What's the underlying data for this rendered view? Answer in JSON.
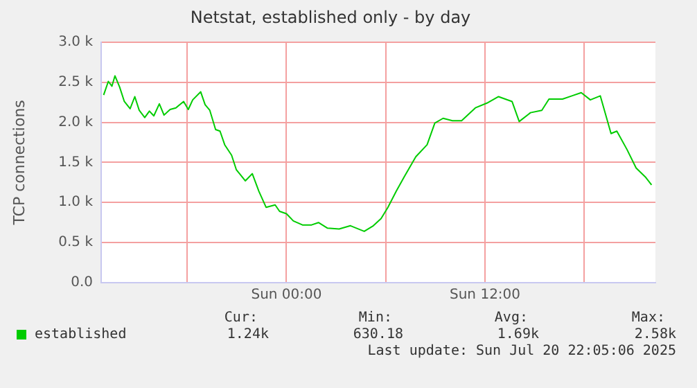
{
  "chart_data": {
    "type": "line",
    "title": "Netstat, established only - by day",
    "ylabel": "TCP connections",
    "xlim": [
      "2025-07-19T12:48",
      "2025-07-20T22:18"
    ],
    "xticks": [
      {
        "value": "2025-07-19T18:00",
        "label": null
      },
      {
        "value": "2025-07-20T00:00",
        "label": "Sun 00:00"
      },
      {
        "value": "2025-07-20T06:00",
        "label": null
      },
      {
        "value": "2025-07-20T12:00",
        "label": "Sun 12:00"
      },
      {
        "value": "2025-07-20T18:00",
        "label": null
      }
    ],
    "ylim": [
      0,
      3000
    ],
    "yticks": [
      {
        "value": 0,
        "label": "0.0"
      },
      {
        "value": 500,
        "label": "0.5 k"
      },
      {
        "value": 1000,
        "label": "1.0 k"
      },
      {
        "value": 1500,
        "label": "1.5 k"
      },
      {
        "value": 2000,
        "label": "2.0 k"
      },
      {
        "value": 2500,
        "label": "2.5 k"
      },
      {
        "value": 3000,
        "label": "3.0 k"
      }
    ],
    "grid": true,
    "legend": "bottom",
    "marker": "none",
    "line_style": "solid",
    "series": [
      {
        "name": "established",
        "color": "#00cc00",
        "x": [
          "2025-07-19T12:57",
          "2025-07-19T13:14",
          "2025-07-19T13:27",
          "2025-07-19T13:38",
          "2025-07-19T13:55",
          "2025-07-19T14:12",
          "2025-07-19T14:33",
          "2025-07-19T14:50",
          "2025-07-19T15:06",
          "2025-07-19T15:26",
          "2025-07-19T15:43",
          "2025-07-19T15:59",
          "2025-07-19T16:19",
          "2025-07-19T16:36",
          "2025-07-19T16:58",
          "2025-07-19T17:19",
          "2025-07-19T17:47",
          "2025-07-19T18:04",
          "2025-07-19T18:20",
          "2025-07-19T18:49",
          "2025-07-19T19:05",
          "2025-07-19T19:22",
          "2025-07-19T19:43",
          "2025-07-19T19:59",
          "2025-07-19T20:16",
          "2025-07-19T20:41",
          "2025-07-19T20:58",
          "2025-07-19T21:31",
          "2025-07-19T21:56",
          "2025-07-19T22:20",
          "2025-07-19T22:46",
          "2025-07-19T23:19",
          "2025-07-19T23:35",
          "2025-07-20T00:00",
          "2025-07-20T00:25",
          "2025-07-20T00:58",
          "2025-07-20T01:31",
          "2025-07-20T01:56",
          "2025-07-20T02:29",
          "2025-07-20T03:11",
          "2025-07-20T03:52",
          "2025-07-20T04:42",
          "2025-07-20T05:15",
          "2025-07-20T05:43",
          "2025-07-20T06:08",
          "2025-07-20T06:38",
          "2025-07-20T07:07",
          "2025-07-20T07:49",
          "2025-07-20T08:30",
          "2025-07-20T08:58",
          "2025-07-20T09:28",
          "2025-07-20T10:02",
          "2025-07-20T10:35",
          "2025-07-20T11:25",
          "2025-07-20T12:07",
          "2025-07-20T12:49",
          "2025-07-20T13:38",
          "2025-07-20T14:04",
          "2025-07-20T14:45",
          "2025-07-20T15:26",
          "2025-07-20T15:52",
          "2025-07-20T16:41",
          "2025-07-20T17:15",
          "2025-07-20T17:49",
          "2025-07-20T18:22",
          "2025-07-20T18:58",
          "2025-07-20T19:37",
          "2025-07-20T19:58",
          "2025-07-20T20:35",
          "2025-07-20T21:08",
          "2025-07-20T21:41",
          "2025-07-20T22:04"
        ],
        "values": [
          2340,
          2510,
          2450,
          2580,
          2440,
          2260,
          2170,
          2320,
          2150,
          2060,
          2140,
          2080,
          2230,
          2090,
          2160,
          2180,
          2260,
          2160,
          2280,
          2380,
          2220,
          2150,
          1910,
          1890,
          1720,
          1590,
          1410,
          1270,
          1360,
          1140,
          940,
          970,
          890,
          860,
          770,
          720,
          720,
          750,
          680,
          670,
          710,
          640,
          710,
          800,
          940,
          1140,
          1320,
          1570,
          1720,
          1990,
          2050,
          2020,
          2020,
          2180,
          2240,
          2320,
          2260,
          2010,
          2120,
          2150,
          2290,
          2290,
          2330,
          2370,
          2280,
          2330,
          1860,
          1890,
          1660,
          1430,
          1320,
          1220
        ]
      }
    ],
    "annotations": [
      "Cur:",
      "Min:",
      "Avg:",
      "Max:",
      "1.24k",
      "630.18",
      "1.69k",
      "2.58k",
      "Last update: Sun Jul 20 22:05:06 2025"
    ]
  }
}
